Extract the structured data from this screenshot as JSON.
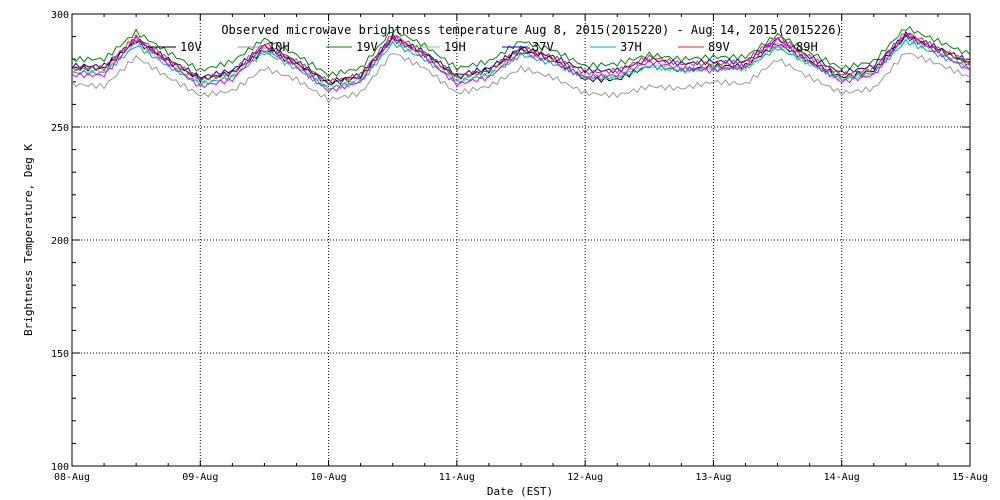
{
  "chart_data": {
    "type": "line",
    "title": "Observed microwave brightness temperature Aug  8, 2015(2015220) - Aug 14, 2015(2015226)",
    "xlabel": "Date (EST)",
    "ylabel": "Brightness Temperature, Deg K",
    "ylim": [
      100,
      300
    ],
    "xlim_days": [
      0,
      7
    ],
    "x_tick_labels": [
      "08-Aug",
      "09-Aug",
      "10-Aug",
      "11-Aug",
      "12-Aug",
      "13-Aug",
      "14-Aug",
      "15-Aug"
    ],
    "y_ticks": [
      100,
      150,
      200,
      250,
      300
    ],
    "grid": "dotted",
    "legend": "top",
    "x_times": [
      "Aug 8 00:00",
      "Aug 8 06:00",
      "Aug 8 12:00",
      "Aug 8 18:00",
      "Aug 9 00:00",
      "Aug 9 06:00",
      "Aug 9 12:00",
      "Aug 9 18:00",
      "Aug 10 00:00",
      "Aug 10 06:00",
      "Aug 10 12:00",
      "Aug 10 18:00",
      "Aug 11 00:00",
      "Aug 11 06:00",
      "Aug 11 12:00",
      "Aug 11 18:00",
      "Aug 12 00:00",
      "Aug 12 06:00",
      "Aug 12 12:00",
      "Aug 12 18:00",
      "Aug 13 00:00",
      "Aug 13 06:00",
      "Aug 13 12:00",
      "Aug 13 18:00",
      "Aug 14 00:00",
      "Aug 14 06:00",
      "Aug 14 12:00",
      "Aug 14 18:00",
      "Aug 15 00:00"
    ],
    "series": [
      {
        "name": "10V",
        "color": "#000000",
        "values": [
          276,
          276,
          288,
          279,
          271,
          274,
          284,
          278,
          269,
          272,
          289,
          282,
          272,
          275,
          284,
          280,
          271,
          271,
          277,
          275,
          277,
          277,
          287,
          279,
          272,
          275,
          290,
          284,
          278
        ]
      },
      {
        "name": "10H",
        "color": "#999999",
        "values": [
          269,
          268,
          281,
          272,
          264,
          266,
          276,
          271,
          262,
          265,
          283,
          276,
          265,
          268,
          276,
          272,
          265,
          264,
          268,
          267,
          270,
          269,
          280,
          272,
          265,
          267,
          283,
          278,
          272
        ]
      },
      {
        "name": "19V",
        "color": "#008800",
        "values": [
          280,
          280,
          292,
          283,
          275,
          279,
          289,
          282,
          273,
          276,
          293,
          286,
          276,
          279,
          288,
          284,
          277,
          278,
          282,
          280,
          281,
          281,
          291,
          283,
          276,
          279,
          294,
          288,
          282
        ]
      },
      {
        "name": "19H",
        "color": "#66dd66",
        "values": [
          275,
          275,
          287,
          278,
          270,
          273,
          284,
          277,
          268,
          271,
          288,
          281,
          271,
          274,
          283,
          279,
          272,
          272,
          277,
          275,
          276,
          276,
          286,
          278,
          271,
          274,
          289,
          283,
          277
        ]
      },
      {
        "name": "37V",
        "color": "#0000cc",
        "values": [
          277,
          277,
          289,
          280,
          272,
          275,
          286,
          279,
          270,
          273,
          290,
          283,
          273,
          276,
          285,
          281,
          275,
          275,
          280,
          278,
          279,
          279,
          289,
          281,
          274,
          277,
          291,
          285,
          279
        ]
      },
      {
        "name": "37H",
        "color": "#00aacc",
        "values": [
          274,
          274,
          286,
          277,
          269,
          272,
          283,
          276,
          267,
          270,
          287,
          280,
          270,
          273,
          282,
          278,
          272,
          272,
          277,
          275,
          276,
          276,
          285,
          278,
          271,
          274,
          288,
          282,
          276
        ]
      },
      {
        "name": "89V",
        "color": "#cc3333",
        "values": [
          276,
          276,
          290,
          280,
          271,
          274,
          287,
          279,
          270,
          273,
          291,
          283,
          272,
          275,
          285,
          281,
          274,
          275,
          281,
          278,
          278,
          279,
          290,
          281,
          273,
          276,
          292,
          285,
          278
        ]
      },
      {
        "name": "89H",
        "color": "#ee00ee",
        "values": [
          273,
          273,
          289,
          278,
          268,
          271,
          286,
          277,
          266,
          270,
          290,
          281,
          269,
          272,
          283,
          279,
          272,
          273,
          279,
          276,
          275,
          277,
          289,
          279,
          270,
          273,
          291,
          283,
          275
        ]
      }
    ]
  }
}
